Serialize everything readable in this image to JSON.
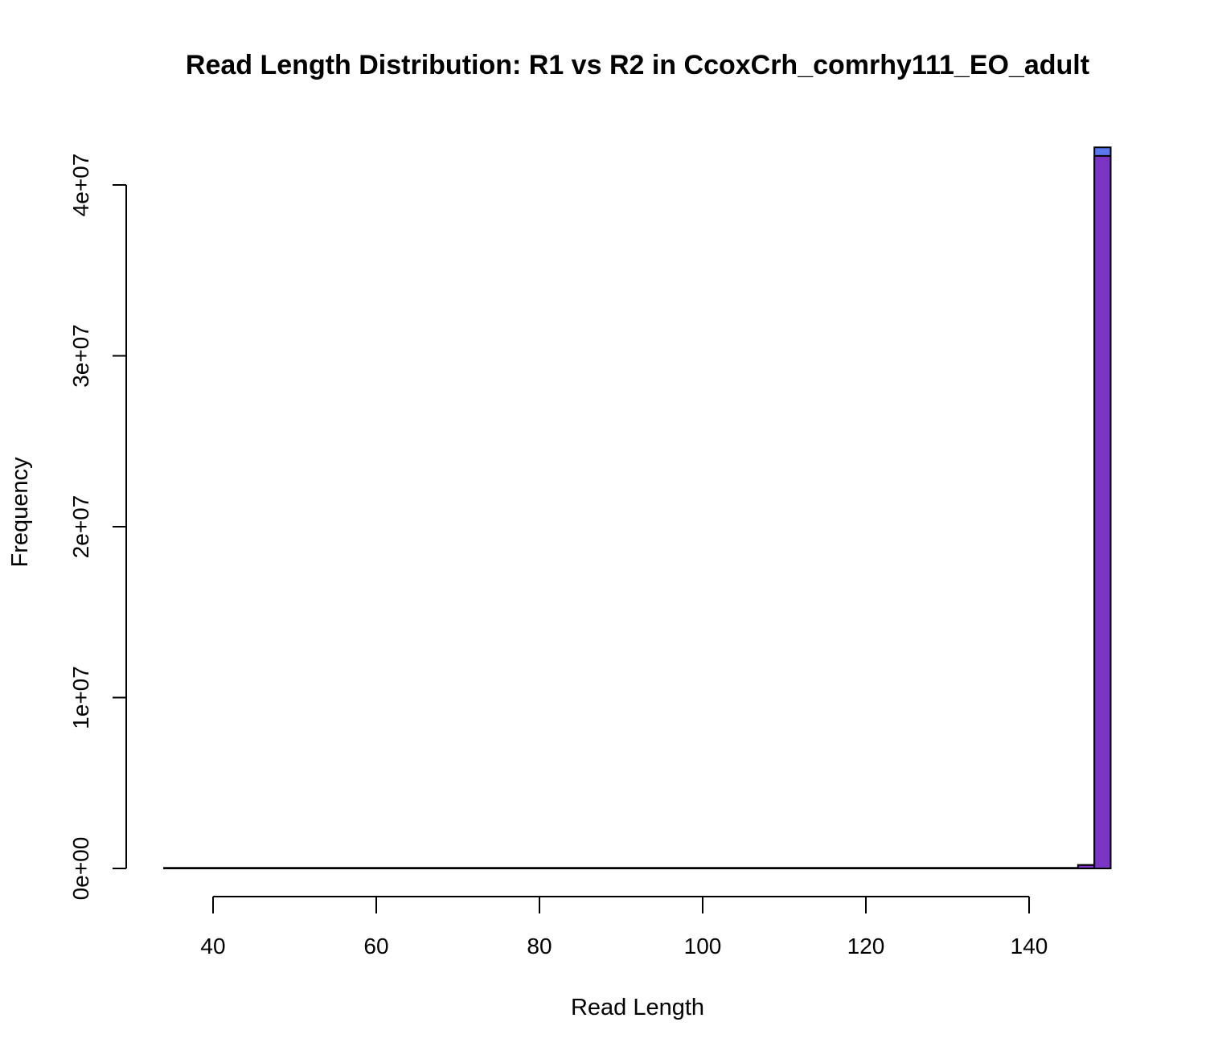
{
  "chart_data": {
    "type": "bar",
    "title": "Read Length Distribution: R1 vs R2 in  CcoxCrh_comrhy111_EO_adult",
    "xlabel": "Read Length",
    "ylabel": "Frequency",
    "xlim": [
      30,
      150
    ],
    "ylim": [
      0,
      42000000
    ],
    "x_ticks": [
      40,
      60,
      80,
      100,
      120,
      140
    ],
    "x_tick_labels": [
      "40",
      "60",
      "80",
      "100",
      "120",
      "140"
    ],
    "y_ticks": [
      0,
      10000000,
      20000000,
      30000000,
      40000000
    ],
    "y_tick_labels": [
      "0e+00",
      "1e+07",
      "2e+07",
      "3e+07",
      "4e+07"
    ],
    "bin_width": 2,
    "series": [
      {
        "color": "#5b78f0",
        "bins": [
          {
            "x0": 34,
            "x1": 146,
            "value": 30000
          },
          {
            "x0": 146,
            "x1": 148,
            "value": 200000
          },
          {
            "x0": 148,
            "x1": 150,
            "value": 42200000
          }
        ]
      },
      {
        "color": "#7a35c4",
        "bins": [
          {
            "x0": 34,
            "x1": 146,
            "value": 30000
          },
          {
            "x0": 146,
            "x1": 148,
            "value": 200000
          },
          {
            "x0": 148,
            "x1": 150,
            "value": 41700000
          }
        ]
      }
    ]
  }
}
